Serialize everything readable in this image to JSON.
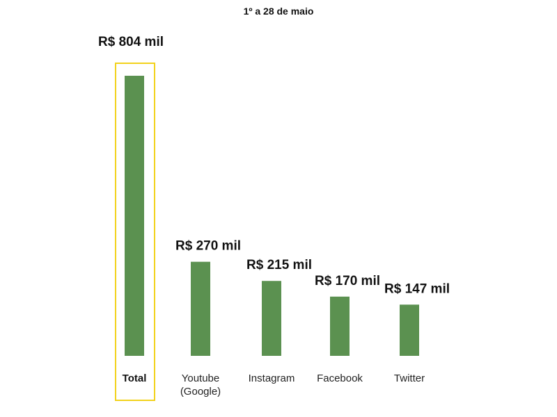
{
  "chart_data": {
    "type": "bar",
    "title": "1º a 28 de maio",
    "xlabel": "",
    "ylabel": "",
    "ylim": [
      0,
      804
    ],
    "grid": false,
    "categories": [
      [
        "Total"
      ],
      [
        "Youtube",
        "(Google)"
      ],
      [
        "Instagram"
      ],
      [
        "Facebook"
      ],
      [
        "Twitter"
      ]
    ],
    "values": [
      804,
      270,
      215,
      170,
      147
    ],
    "data_labels": [
      "R$ 804 mil",
      "R$ 270 mil",
      "R$ 215 mil",
      "R$ 170 mil",
      "R$ 147 mil"
    ],
    "highlighted_category": "Total",
    "colors": {
      "bar": "#5b9150",
      "highlight_border": "#f2d21b",
      "text": "#111111"
    }
  }
}
